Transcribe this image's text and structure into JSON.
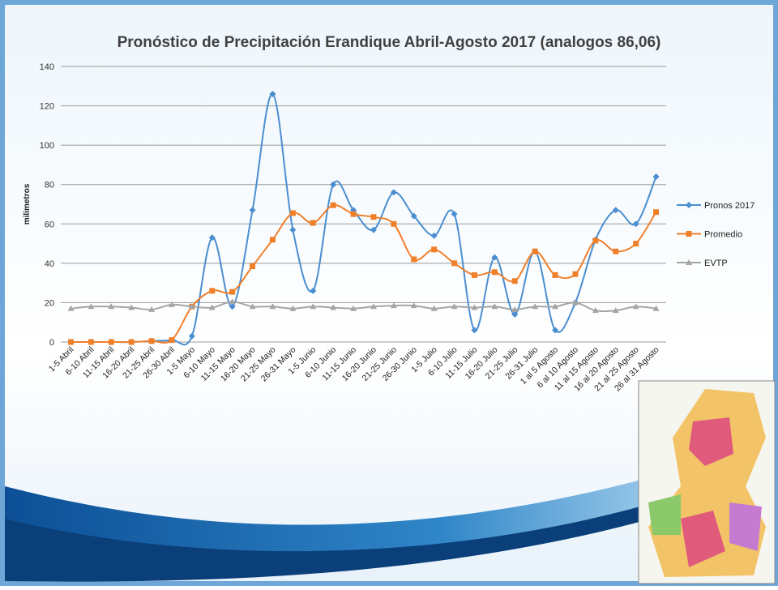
{
  "chart_data": {
    "type": "line",
    "title": "Pronóstico de Precipitación Erandique Abril-Agosto 2017 (analogos 86,06)",
    "y_label": "milimetros",
    "categories": [
      "1-5 Abril",
      "6-10 Abril",
      "11-15 Abril",
      "16-20 Abril",
      "21-25 Abril",
      "26-30 Abril",
      "1-5 Mayo",
      "6-10 Mayo",
      "11-15 Mayo",
      "16-20 Mayo",
      "21-25 Mayo",
      "26-31 Mayo",
      "1-5 Junio",
      "6-10 Junio",
      "11-15 Junio",
      "16-20 Junio",
      "21-25 Junio",
      "26-30 Junio",
      "1-5 Julio",
      "6-10 Julio",
      "11-15 Julio",
      "16-20 Julio",
      "21-25 Julio",
      "26-31 Julio",
      "1 al 5 Agosto",
      "6 al 10 Agosto",
      "11 al 15 Agosto",
      "16 al 20 Agosto",
      "21 al 25 Agosto",
      "26 al 31 Agosto"
    ],
    "series": [
      {
        "name": "Pronos 2017",
        "color": "#4a8ed0",
        "marker": "diamond",
        "values": [
          0,
          0,
          0,
          0,
          0.5,
          1,
          3,
          53,
          18,
          67,
          126,
          57,
          26,
          80,
          67,
          57,
          76,
          64,
          54,
          65,
          6,
          43,
          14,
          46,
          6,
          20,
          52,
          67,
          60,
          84
        ]
      },
      {
        "name": "Promedio",
        "color": "#f07f2a",
        "marker": "square",
        "values": [
          0,
          0,
          0,
          0,
          0.5,
          1,
          18,
          26,
          25.5,
          38.5,
          52,
          65.5,
          60.5,
          69.5,
          65,
          63.5,
          60,
          42,
          47,
          40,
          34,
          35.5,
          31,
          46,
          34,
          34.5,
          51.5,
          46,
          50,
          66
        ]
      },
      {
        "name": "EVTP",
        "color": "#a5a5a5",
        "marker": "triangle",
        "values": [
          17,
          18,
          18,
          17.5,
          16.5,
          19,
          18,
          17.5,
          20.5,
          18,
          18,
          17,
          18,
          17.5,
          17,
          18,
          18.5,
          18.5,
          17,
          18,
          17.5,
          18,
          16.5,
          18,
          18,
          20,
          16,
          16,
          18,
          17
        ]
      }
    ],
    "ylim": [
      0,
      140
    ],
    "yticks": [
      0,
      20,
      40,
      60,
      80,
      100,
      120,
      140
    ],
    "grid": true,
    "smooth": true,
    "legend": "right"
  }
}
